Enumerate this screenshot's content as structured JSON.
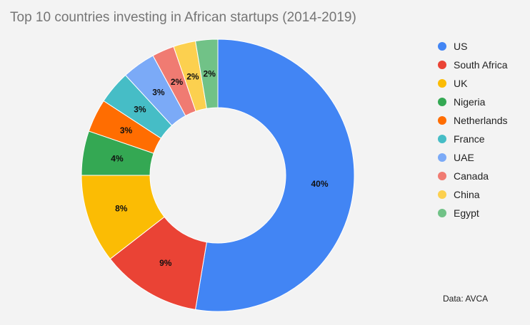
{
  "chart_data": {
    "type": "pie",
    "title": "Top 10 countries investing in African startups (2014-2019)",
    "source": "Data: AVCA",
    "donut": true,
    "legend_position": "right",
    "categories": [
      "US",
      "South Africa",
      "UK",
      "Nigeria",
      "Netherlands",
      "France",
      "UAE",
      "Canada",
      "China",
      "Egypt"
    ],
    "values": [
      40,
      9,
      8,
      4,
      3,
      3,
      3,
      2,
      2,
      2
    ],
    "labels": [
      "40%",
      "9%",
      "8%",
      "4%",
      "3%",
      "3%",
      "3%",
      "2%",
      "2%",
      "2%"
    ],
    "colors": [
      "#4285f4",
      "#ea4335",
      "#fbbc04",
      "#34a853",
      "#ff6d01",
      "#46bdc6",
      "#7baaf7",
      "#f07b72",
      "#fcd04f",
      "#71c287"
    ]
  }
}
